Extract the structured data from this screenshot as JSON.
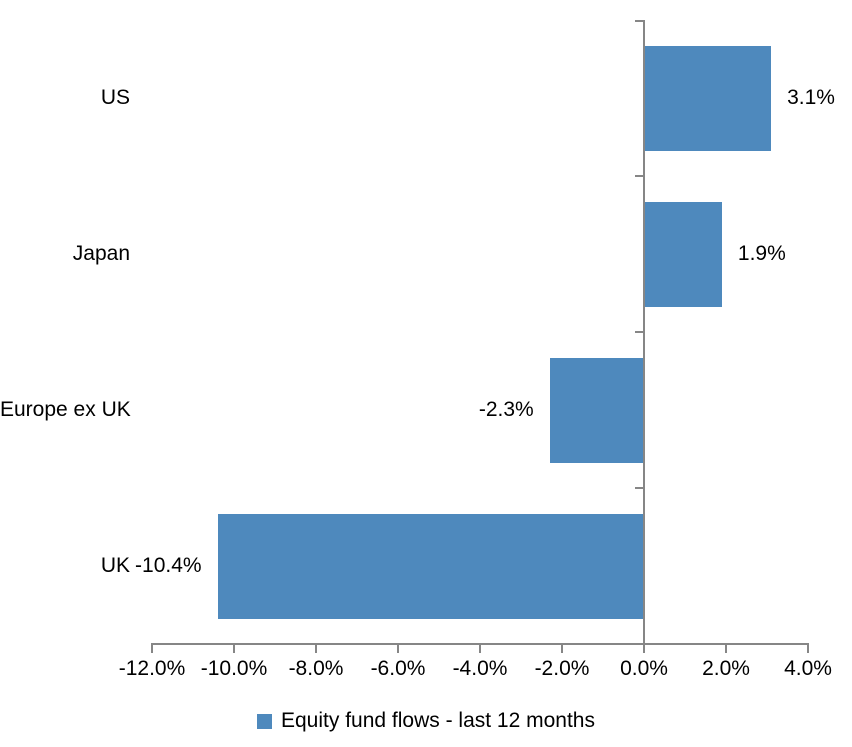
{
  "chart_data": {
    "type": "bar",
    "orientation": "horizontal",
    "title": "",
    "categories": [
      "US",
      "Japan",
      "Europe ex UK",
      "UK"
    ],
    "series": [
      {
        "name": "Equity fund flows - last 12 months",
        "values": [
          3.1,
          1.9,
          -2.3,
          -10.4
        ],
        "data_labels": [
          "3.1%",
          "1.9%",
          "-2.3%",
          "-10.4%"
        ]
      }
    ],
    "xlabel": "",
    "ylabel": "",
    "xlim": [
      -12,
      4
    ],
    "x_ticks": [
      -12,
      -10,
      -8,
      -6,
      -4,
      -2,
      0,
      2,
      4
    ],
    "x_tick_labels": [
      "-12.0%",
      "-10.0%",
      "-8.0%",
      "-6.0%",
      "-4.0%",
      "-2.0%",
      "0.0%",
      "2.0%",
      "4.0%"
    ],
    "grid": false,
    "legend_position": "bottom",
    "colors": {
      "bar": "#4E89BD",
      "axis": "#868686",
      "text": "#000000",
      "background": "#FFFFFF"
    }
  },
  "legend": {
    "label": "Equity fund flows - last 12 months"
  }
}
